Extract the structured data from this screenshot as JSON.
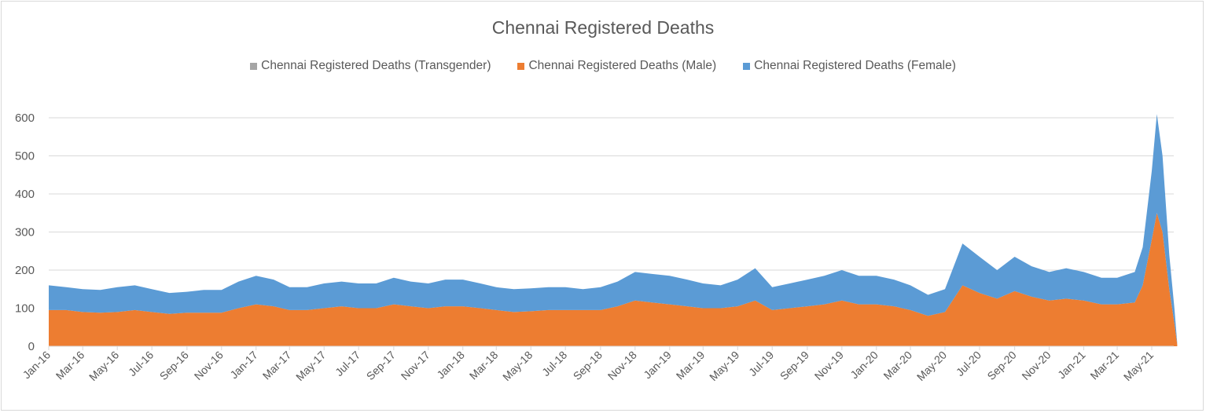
{
  "chart_data": {
    "type": "area",
    "stacked": true,
    "title": "Chennai Registered Deaths",
    "xlabel": "",
    "ylabel": "",
    "ylim": [
      0,
      650
    ],
    "yticks": [
      0,
      100,
      200,
      300,
      400,
      500,
      600
    ],
    "grid": true,
    "legend_position": "top",
    "xticks": [
      "Jan-16",
      "Mar-16",
      "May-16",
      "Jul-16",
      "Sep-16",
      "Nov-16",
      "Jan-17",
      "Mar-17",
      "May-17",
      "Jul-17",
      "Sep-17",
      "Nov-17",
      "Jan-18",
      "Mar-18",
      "May-18",
      "Jul-18",
      "Sep-18",
      "Nov-18",
      "Jan-19",
      "Mar-19",
      "May-19",
      "Jul-19",
      "Sep-19",
      "Nov-19",
      "Jan-20",
      "Mar-20",
      "May-20",
      "Jul-20",
      "Sep-20",
      "Nov-20",
      "Jan-21",
      "Mar-21",
      "May-21"
    ],
    "series_names": [
      "Chennai Registered Deaths (Transgender)",
      "Chennai Registered Deaths (Male)",
      "Chennai Registered Deaths (Female)"
    ],
    "colors": {
      "transgender": "#a5a5a5",
      "male": "#ed7d31",
      "female": "#5b9bd5"
    },
    "columns": [
      "date",
      "transgender",
      "male",
      "female"
    ],
    "points": [
      [
        "2016-01-01",
        0,
        95,
        65
      ],
      [
        "2016-02-01",
        0,
        95,
        60
      ],
      [
        "2016-03-01",
        0,
        90,
        60
      ],
      [
        "2016-04-01",
        0,
        88,
        60
      ],
      [
        "2016-05-01",
        0,
        90,
        65
      ],
      [
        "2016-06-01",
        0,
        95,
        65
      ],
      [
        "2016-07-01",
        0,
        90,
        60
      ],
      [
        "2016-08-01",
        0,
        85,
        55
      ],
      [
        "2016-09-01",
        0,
        88,
        55
      ],
      [
        "2016-10-01",
        0,
        88,
        60
      ],
      [
        "2016-11-01",
        0,
        88,
        60
      ],
      [
        "2016-12-01",
        0,
        100,
        70
      ],
      [
        "2017-01-01",
        0,
        110,
        75
      ],
      [
        "2017-02-01",
        0,
        105,
        70
      ],
      [
        "2017-03-01",
        0,
        95,
        60
      ],
      [
        "2017-04-01",
        0,
        95,
        60
      ],
      [
        "2017-05-01",
        0,
        100,
        65
      ],
      [
        "2017-06-01",
        0,
        105,
        65
      ],
      [
        "2017-07-01",
        0,
        100,
        65
      ],
      [
        "2017-08-01",
        0,
        100,
        65
      ],
      [
        "2017-09-01",
        0,
        110,
        70
      ],
      [
        "2017-10-01",
        0,
        105,
        65
      ],
      [
        "2017-11-01",
        0,
        100,
        65
      ],
      [
        "2017-12-01",
        0,
        105,
        70
      ],
      [
        "2018-01-01",
        0,
        105,
        70
      ],
      [
        "2018-02-01",
        0,
        100,
        65
      ],
      [
        "2018-03-01",
        0,
        95,
        60
      ],
      [
        "2018-04-01",
        0,
        90,
        60
      ],
      [
        "2018-05-01",
        0,
        92,
        60
      ],
      [
        "2018-06-01",
        0,
        95,
        60
      ],
      [
        "2018-07-01",
        0,
        95,
        60
      ],
      [
        "2018-08-01",
        0,
        95,
        55
      ],
      [
        "2018-09-01",
        0,
        95,
        60
      ],
      [
        "2018-10-01",
        0,
        105,
        65
      ],
      [
        "2018-11-01",
        0,
        120,
        75
      ],
      [
        "2018-12-01",
        0,
        115,
        75
      ],
      [
        "2019-01-01",
        0,
        110,
        75
      ],
      [
        "2019-02-01",
        0,
        105,
        70
      ],
      [
        "2019-03-01",
        0,
        100,
        65
      ],
      [
        "2019-04-01",
        0,
        100,
        60
      ],
      [
        "2019-05-01",
        0,
        105,
        70
      ],
      [
        "2019-06-01",
        0,
        120,
        85
      ],
      [
        "2019-07-01",
        0,
        95,
        60
      ],
      [
        "2019-08-01",
        0,
        100,
        65
      ],
      [
        "2019-09-01",
        0,
        105,
        70
      ],
      [
        "2019-10-01",
        0,
        110,
        75
      ],
      [
        "2019-11-01",
        0,
        120,
        80
      ],
      [
        "2019-12-01",
        0,
        110,
        75
      ],
      [
        "2020-01-01",
        0,
        110,
        75
      ],
      [
        "2020-02-01",
        0,
        105,
        70
      ],
      [
        "2020-03-01",
        0,
        95,
        65
      ],
      [
        "2020-04-01",
        0,
        80,
        55
      ],
      [
        "2020-05-01",
        0,
        90,
        60
      ],
      [
        "2020-06-01",
        0,
        160,
        110
      ],
      [
        "2020-07-01",
        0,
        140,
        95
      ],
      [
        "2020-08-01",
        0,
        125,
        75
      ],
      [
        "2020-09-01",
        0,
        145,
        90
      ],
      [
        "2020-10-01",
        0,
        130,
        80
      ],
      [
        "2020-11-01",
        0,
        120,
        75
      ],
      [
        "2020-12-01",
        0,
        125,
        80
      ],
      [
        "2021-01-01",
        0,
        120,
        75
      ],
      [
        "2021-02-01",
        0,
        110,
        70
      ],
      [
        "2021-03-01",
        0,
        110,
        70
      ],
      [
        "2021-04-01",
        0,
        115,
        80
      ],
      [
        "2021-04-15",
        0,
        160,
        100
      ],
      [
        "2021-05-01",
        0,
        280,
        180
      ],
      [
        "2021-05-10",
        0,
        350,
        260
      ],
      [
        "2021-05-20",
        0,
        300,
        200
      ],
      [
        "2021-06-01",
        0,
        150,
        90
      ],
      [
        "2021-06-10",
        0,
        60,
        40
      ],
      [
        "2021-06-15",
        0,
        5,
        3
      ]
    ]
  }
}
